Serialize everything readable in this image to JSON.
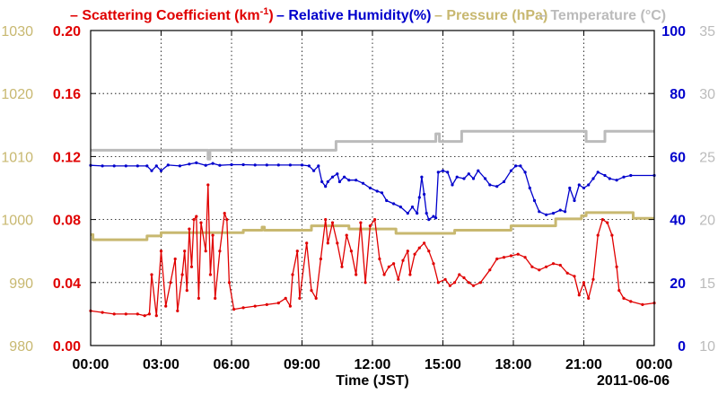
{
  "chart_data": {
    "type": "line",
    "legend": {
      "placement": "top",
      "items": [
        {
          "label": "Scattering Coefficient (km",
          "sup": "-1",
          "tail": ")",
          "color": "#e00000"
        },
        {
          "label": "Relative Humidity(%)",
          "sup": "",
          "tail": "",
          "color": "#0000cc"
        },
        {
          "label": "Pressure (hPa)",
          "sup": "",
          "tail": "",
          "color": "#c8b870"
        },
        {
          "label": "Temperature (°C)",
          "sup": "",
          "tail": "",
          "color": "#bbbbbb"
        }
      ]
    },
    "x_axis": {
      "label": "Time (JST)",
      "range_hours": [
        0,
        24
      ],
      "ticks": [
        "00:00",
        "03:00",
        "06:00",
        "09:00",
        "12:00",
        "15:00",
        "18:00",
        "21:00",
        "00:00"
      ],
      "date_label": "2011-06-06"
    },
    "grid": "dotted",
    "axes": {
      "pressure": {
        "label": "Pressure (hPa)",
        "range": [
          980,
          1030
        ],
        "ticks": [
          "980",
          "990",
          "1000",
          "1010",
          "1020",
          "1030"
        ],
        "color": "#c8b870"
      },
      "scattering": {
        "label": "Scattering Coefficient",
        "range": [
          0,
          0.2
        ],
        "ticks": [
          "0.00",
          "0.04",
          "0.08",
          "0.12",
          "0.16",
          "0.20"
        ],
        "color": "#e00000"
      },
      "humidity": {
        "label": "Relative Humidity",
        "range": [
          0,
          100
        ],
        "ticks": [
          "0",
          "20",
          "40",
          "60",
          "80",
          "100"
        ],
        "color": "#0000cc"
      },
      "temperature": {
        "label": "Temperature",
        "range": [
          10,
          35
        ],
        "ticks": [
          "10",
          "15",
          "20",
          "25",
          "30",
          "35"
        ],
        "color": "#bbbbbb"
      }
    },
    "series": [
      {
        "name": "Temperature",
        "axis": "temperature",
        "color": "#bbbbbb",
        "step": true,
        "points": [
          [
            0,
            25.5
          ],
          [
            5.0,
            25.5
          ],
          [
            5.0,
            24.8
          ],
          [
            5.08,
            24.8
          ],
          [
            5.08,
            25.5
          ],
          [
            10.45,
            25.5
          ],
          [
            10.45,
            26.2
          ],
          [
            14.7,
            26.2
          ],
          [
            14.7,
            26.8
          ],
          [
            14.85,
            26.8
          ],
          [
            14.85,
            26.2
          ],
          [
            15.8,
            26.2
          ],
          [
            15.8,
            27.0
          ],
          [
            21.1,
            27.0
          ],
          [
            21.1,
            26.2
          ],
          [
            21.9,
            26.2
          ],
          [
            21.9,
            27.0
          ],
          [
            24,
            27.0
          ]
        ]
      },
      {
        "name": "Pressure",
        "axis": "pressure",
        "color": "#c8b870",
        "step": true,
        "points": [
          [
            0,
            997.6
          ],
          [
            0.1,
            997.6
          ],
          [
            0.1,
            996.8
          ],
          [
            2.4,
            996.8
          ],
          [
            2.4,
            997.4
          ],
          [
            3.0,
            997.4
          ],
          [
            3.0,
            997.9
          ],
          [
            6.5,
            997.9
          ],
          [
            6.5,
            998.3
          ],
          [
            7.3,
            998.3
          ],
          [
            7.3,
            998.8
          ],
          [
            7.4,
            998.8
          ],
          [
            7.4,
            998.3
          ],
          [
            9.4,
            998.3
          ],
          [
            9.4,
            999.0
          ],
          [
            11.0,
            999.0
          ],
          [
            11.0,
            998.5
          ],
          [
            13.0,
            998.5
          ],
          [
            13.0,
            997.8
          ],
          [
            15.5,
            997.8
          ],
          [
            15.5,
            998.3
          ],
          [
            17.9,
            998.3
          ],
          [
            17.9,
            999.0
          ],
          [
            19.8,
            999.0
          ],
          [
            19.8,
            1000.1
          ],
          [
            20.9,
            1000.1
          ],
          [
            20.9,
            1000.6
          ],
          [
            21.1,
            1000.6
          ],
          [
            21.1,
            1001.1
          ],
          [
            23.1,
            1001.1
          ],
          [
            23.1,
            1000.2
          ],
          [
            24,
            1000.2
          ]
        ]
      },
      {
        "name": "Relative Humidity",
        "axis": "humidity",
        "color": "#0000cc",
        "markers": true,
        "points": [
          [
            0,
            57.2
          ],
          [
            0.5,
            57.0
          ],
          [
            1.0,
            57.0
          ],
          [
            1.5,
            57.0
          ],
          [
            2.0,
            57.0
          ],
          [
            2.4,
            57.0
          ],
          [
            2.6,
            55.5
          ],
          [
            2.8,
            57.0
          ],
          [
            3.0,
            55.5
          ],
          [
            3.3,
            57.3
          ],
          [
            3.8,
            57.0
          ],
          [
            4.2,
            57.6
          ],
          [
            4.5,
            58.0
          ],
          [
            4.9,
            57.2
          ],
          [
            5.2,
            57.8
          ],
          [
            5.5,
            57.2
          ],
          [
            6.0,
            57.4
          ],
          [
            6.5,
            57.4
          ],
          [
            7.0,
            57.3
          ],
          [
            7.5,
            57.3
          ],
          [
            8.0,
            57.3
          ],
          [
            8.5,
            57.3
          ],
          [
            9.0,
            57.3
          ],
          [
            9.3,
            57.0
          ],
          [
            9.5,
            55.5
          ],
          [
            9.7,
            57.0
          ],
          [
            9.85,
            52.0
          ],
          [
            10.0,
            50.5
          ],
          [
            10.1,
            52.0
          ],
          [
            10.3,
            53.5
          ],
          [
            10.5,
            54.5
          ],
          [
            10.6,
            52.0
          ],
          [
            10.8,
            53.5
          ],
          [
            11.0,
            52.5
          ],
          [
            11.3,
            52.5
          ],
          [
            11.6,
            51.5
          ],
          [
            11.9,
            50.0
          ],
          [
            12.2,
            49.0
          ],
          [
            12.4,
            48.5
          ],
          [
            12.6,
            46.0
          ],
          [
            12.9,
            45.0
          ],
          [
            13.2,
            44.0
          ],
          [
            13.5,
            42.0
          ],
          [
            13.7,
            44.0
          ],
          [
            13.9,
            42.0
          ],
          [
            14.0,
            47.0
          ],
          [
            14.1,
            53.5
          ],
          [
            14.2,
            48.0
          ],
          [
            14.3,
            42.0
          ],
          [
            14.4,
            40.0
          ],
          [
            14.6,
            41.0
          ],
          [
            14.7,
            40.5
          ],
          [
            14.8,
            55.0
          ],
          [
            15.0,
            55.5
          ],
          [
            15.2,
            55.0
          ],
          [
            15.4,
            51.0
          ],
          [
            15.6,
            53.5
          ],
          [
            15.9,
            53.0
          ],
          [
            16.1,
            54.5
          ],
          [
            16.3,
            53.0
          ],
          [
            16.5,
            55.5
          ],
          [
            16.8,
            53.0
          ],
          [
            17.0,
            51.0
          ],
          [
            17.3,
            50.5
          ],
          [
            17.6,
            52.0
          ],
          [
            17.9,
            55.5
          ],
          [
            18.1,
            57.0
          ],
          [
            18.3,
            57.0
          ],
          [
            18.5,
            55.0
          ],
          [
            18.7,
            50.0
          ],
          [
            18.9,
            46.0
          ],
          [
            19.1,
            42.5
          ],
          [
            19.4,
            41.5
          ],
          [
            19.7,
            42.0
          ],
          [
            20.0,
            43.0
          ],
          [
            20.2,
            42.5
          ],
          [
            20.4,
            50.0
          ],
          [
            20.6,
            46.0
          ],
          [
            20.8,
            51.0
          ],
          [
            21.0,
            50.0
          ],
          [
            21.2,
            51.0
          ],
          [
            21.4,
            53.0
          ],
          [
            21.6,
            55.0
          ],
          [
            21.9,
            54.0
          ],
          [
            22.1,
            53.0
          ],
          [
            22.4,
            52.5
          ],
          [
            22.7,
            53.5
          ],
          [
            23.0,
            54.0
          ],
          [
            24,
            54.0
          ]
        ]
      },
      {
        "name": "Scattering Coefficient",
        "axis": "scattering",
        "color": "#e00000",
        "markers": true,
        "points": [
          [
            0,
            0.022
          ],
          [
            0.5,
            0.021
          ],
          [
            1.0,
            0.02
          ],
          [
            1.5,
            0.02
          ],
          [
            2.0,
            0.02
          ],
          [
            2.3,
            0.019
          ],
          [
            2.5,
            0.02
          ],
          [
            2.6,
            0.045
          ],
          [
            2.8,
            0.019
          ],
          [
            3.0,
            0.06
          ],
          [
            3.2,
            0.025
          ],
          [
            3.4,
            0.04
          ],
          [
            3.6,
            0.055
          ],
          [
            3.7,
            0.022
          ],
          [
            3.9,
            0.045
          ],
          [
            4.0,
            0.06
          ],
          [
            4.1,
            0.035
          ],
          [
            4.2,
            0.074
          ],
          [
            4.3,
            0.05
          ],
          [
            4.4,
            0.08
          ],
          [
            4.5,
            0.082
          ],
          [
            4.6,
            0.03
          ],
          [
            4.7,
            0.078
          ],
          [
            4.9,
            0.06
          ],
          [
            5.0,
            0.102
          ],
          [
            5.1,
            0.045
          ],
          [
            5.2,
            0.07
          ],
          [
            5.3,
            0.03
          ],
          [
            5.5,
            0.06
          ],
          [
            5.7,
            0.084
          ],
          [
            5.8,
            0.08
          ],
          [
            5.9,
            0.04
          ],
          [
            6.1,
            0.023
          ],
          [
            6.5,
            0.024
          ],
          [
            7.0,
            0.025
          ],
          [
            7.5,
            0.026
          ],
          [
            8.0,
            0.027
          ],
          [
            8.3,
            0.03
          ],
          [
            8.5,
            0.025
          ],
          [
            8.6,
            0.045
          ],
          [
            8.8,
            0.06
          ],
          [
            8.9,
            0.03
          ],
          [
            9.2,
            0.065
          ],
          [
            9.4,
            0.035
          ],
          [
            9.6,
            0.03
          ],
          [
            9.8,
            0.055
          ],
          [
            10.0,
            0.08
          ],
          [
            10.1,
            0.065
          ],
          [
            10.3,
            0.078
          ],
          [
            10.5,
            0.065
          ],
          [
            10.7,
            0.05
          ],
          [
            10.9,
            0.07
          ],
          [
            11.1,
            0.06
          ],
          [
            11.3,
            0.045
          ],
          [
            11.5,
            0.078
          ],
          [
            11.7,
            0.04
          ],
          [
            11.9,
            0.076
          ],
          [
            12.1,
            0.08
          ],
          [
            12.3,
            0.055
          ],
          [
            12.5,
            0.045
          ],
          [
            12.7,
            0.05
          ],
          [
            12.9,
            0.052
          ],
          [
            13.1,
            0.042
          ],
          [
            13.3,
            0.054
          ],
          [
            13.5,
            0.06
          ],
          [
            13.6,
            0.045
          ],
          [
            13.8,
            0.058
          ],
          [
            14.0,
            0.062
          ],
          [
            14.2,
            0.065
          ],
          [
            14.4,
            0.06
          ],
          [
            14.6,
            0.052
          ],
          [
            14.8,
            0.04
          ],
          [
            15.1,
            0.042
          ],
          [
            15.3,
            0.038
          ],
          [
            15.5,
            0.04
          ],
          [
            15.7,
            0.045
          ],
          [
            15.9,
            0.043
          ],
          [
            16.1,
            0.04
          ],
          [
            16.3,
            0.038
          ],
          [
            16.6,
            0.04
          ],
          [
            17.0,
            0.048
          ],
          [
            17.3,
            0.055
          ],
          [
            17.6,
            0.056
          ],
          [
            17.9,
            0.057
          ],
          [
            18.2,
            0.058
          ],
          [
            18.5,
            0.056
          ],
          [
            18.8,
            0.05
          ],
          [
            19.1,
            0.048
          ],
          [
            19.4,
            0.05
          ],
          [
            19.7,
            0.052
          ],
          [
            20.0,
            0.051
          ],
          [
            20.3,
            0.046
          ],
          [
            20.6,
            0.044
          ],
          [
            20.8,
            0.032
          ],
          [
            21.0,
            0.04
          ],
          [
            21.2,
            0.03
          ],
          [
            21.4,
            0.042
          ],
          [
            21.6,
            0.07
          ],
          [
            21.8,
            0.08
          ],
          [
            22.0,
            0.078
          ],
          [
            22.2,
            0.07
          ],
          [
            22.4,
            0.05
          ],
          [
            22.5,
            0.035
          ],
          [
            22.7,
            0.03
          ],
          [
            23.0,
            0.028
          ],
          [
            23.5,
            0.026
          ],
          [
            24,
            0.027
          ]
        ]
      }
    ]
  }
}
